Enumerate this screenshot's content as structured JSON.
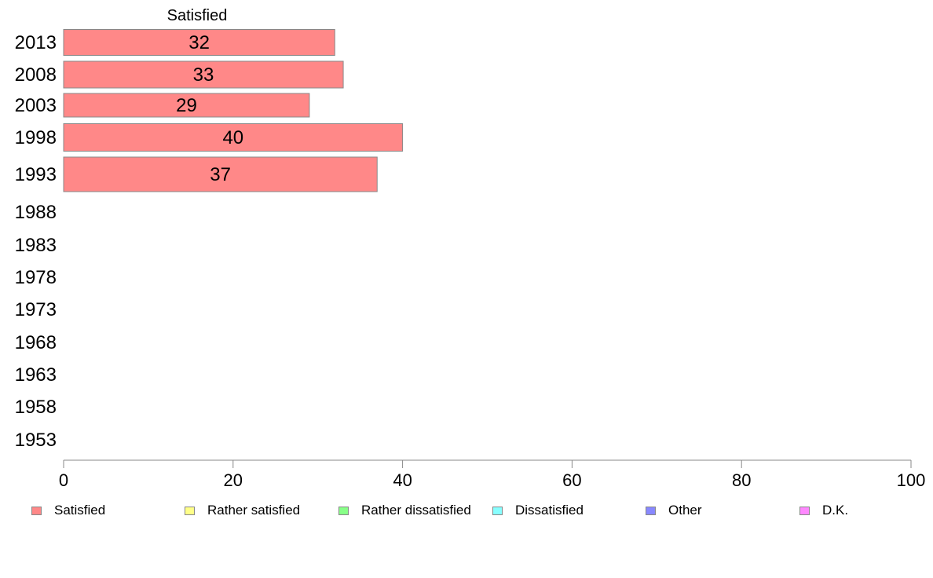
{
  "chart_data": {
    "type": "bar",
    "orientation": "horizontal",
    "stacked": true,
    "title": "",
    "column_header": "Satisfied",
    "categories": [
      "2013",
      "2008",
      "2003",
      "1998",
      "1993",
      "1988",
      "1983",
      "1978",
      "1973",
      "1968",
      "1963",
      "1958",
      "1953"
    ],
    "series": [
      {
        "name": "Satisfied",
        "color": "#ff8888",
        "values": [
          32,
          33,
          29,
          40,
          37,
          null,
          null,
          null,
          null,
          null,
          null,
          null,
          null
        ]
      },
      {
        "name": "Rather satisfied",
        "color": "#ffff88",
        "values": [
          null,
          null,
          null,
          null,
          null,
          null,
          null,
          null,
          null,
          null,
          null,
          null,
          null
        ]
      },
      {
        "name": "Rather dissatisfied",
        "color": "#88ff88",
        "values": [
          null,
          null,
          null,
          null,
          null,
          null,
          null,
          null,
          null,
          null,
          null,
          null,
          null
        ]
      },
      {
        "name": "Dissatisfied",
        "color": "#88ffff",
        "values": [
          null,
          null,
          null,
          null,
          null,
          null,
          null,
          null,
          null,
          null,
          null,
          null,
          null
        ]
      },
      {
        "name": "Other",
        "color": "#8888ff",
        "values": [
          null,
          null,
          null,
          null,
          null,
          null,
          null,
          null,
          null,
          null,
          null,
          null,
          null
        ]
      },
      {
        "name": "D.K.",
        "color": "#ff88ff",
        "values": [
          null,
          null,
          null,
          null,
          null,
          null,
          null,
          null,
          null,
          null,
          null,
          null,
          null
        ]
      }
    ],
    "xlim": [
      0,
      100
    ],
    "xticks": [
      "0",
      "20",
      "40",
      "60",
      "80",
      "100"
    ],
    "xlabel": "",
    "ylabel": "",
    "grid": false,
    "legend_position": "bottom"
  }
}
